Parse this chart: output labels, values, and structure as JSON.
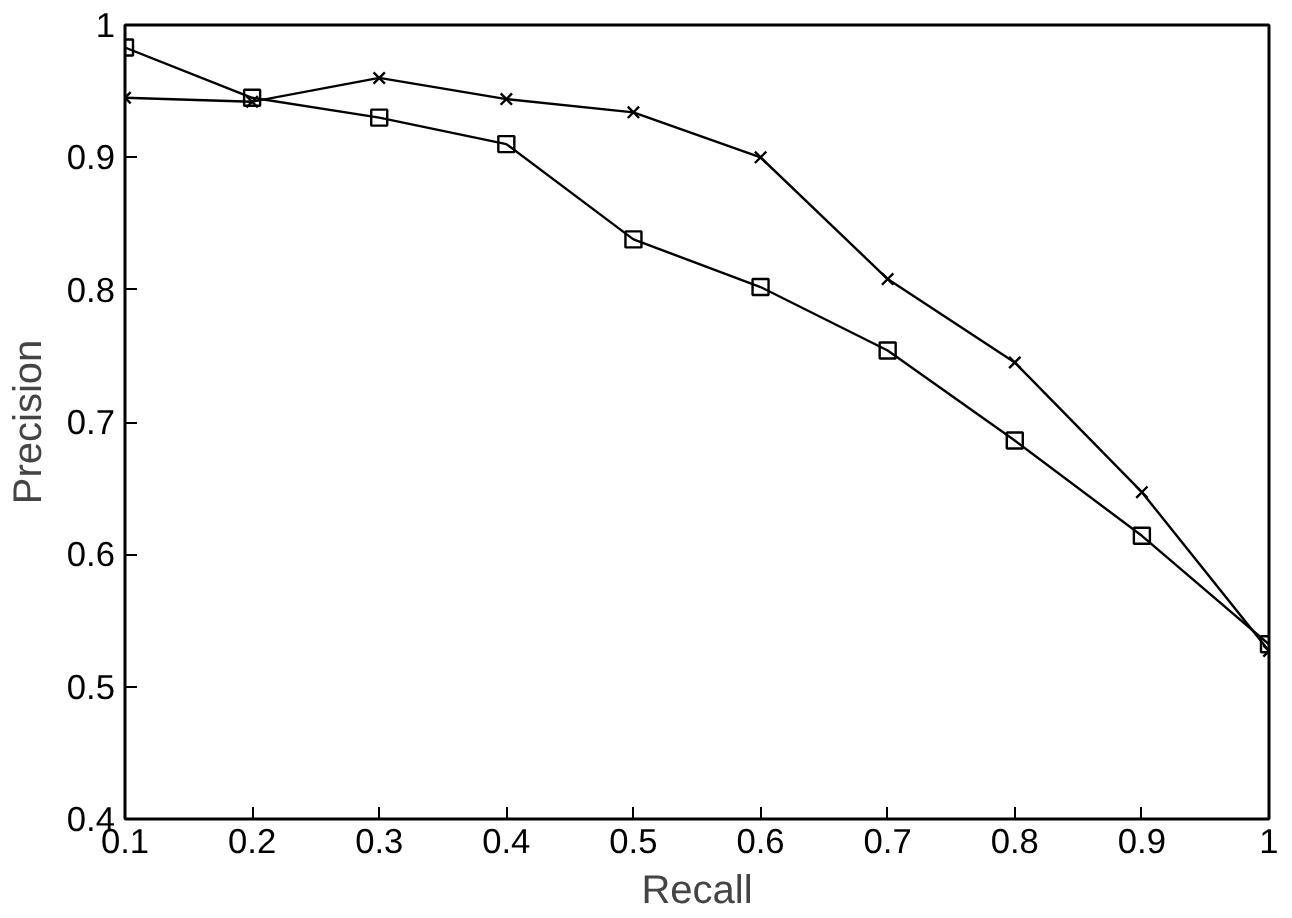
{
  "chart_data": {
    "type": "line",
    "xlabel": "Recall",
    "ylabel": "Precision",
    "x": [
      0.1,
      0.2,
      0.3,
      0.4,
      0.5,
      0.6,
      0.7,
      0.8,
      0.9,
      1.0
    ],
    "series": [
      {
        "color": "#000000",
        "marker": "cross",
        "values": [
          0.945,
          0.942,
          0.96,
          0.944,
          0.934,
          0.9,
          0.808,
          0.745,
          0.647,
          0.527
        ]
      },
      {
        "color": "#000000",
        "marker": "square",
        "values": [
          0.983,
          0.945,
          0.93,
          0.91,
          0.838,
          0.802,
          0.754,
          0.686,
          0.614,
          0.532
        ]
      }
    ],
    "xlim": [
      0.1,
      1.0
    ],
    "ylim": [
      0.4,
      1.0
    ],
    "xticks": [
      0.1,
      0.2,
      0.3,
      0.4,
      0.5,
      0.6,
      0.7,
      0.8,
      0.9,
      1
    ],
    "yticks": [
      0.4,
      0.5,
      0.6,
      0.7,
      0.8,
      0.9,
      1
    ],
    "grid": false,
    "line_style": "solid"
  }
}
